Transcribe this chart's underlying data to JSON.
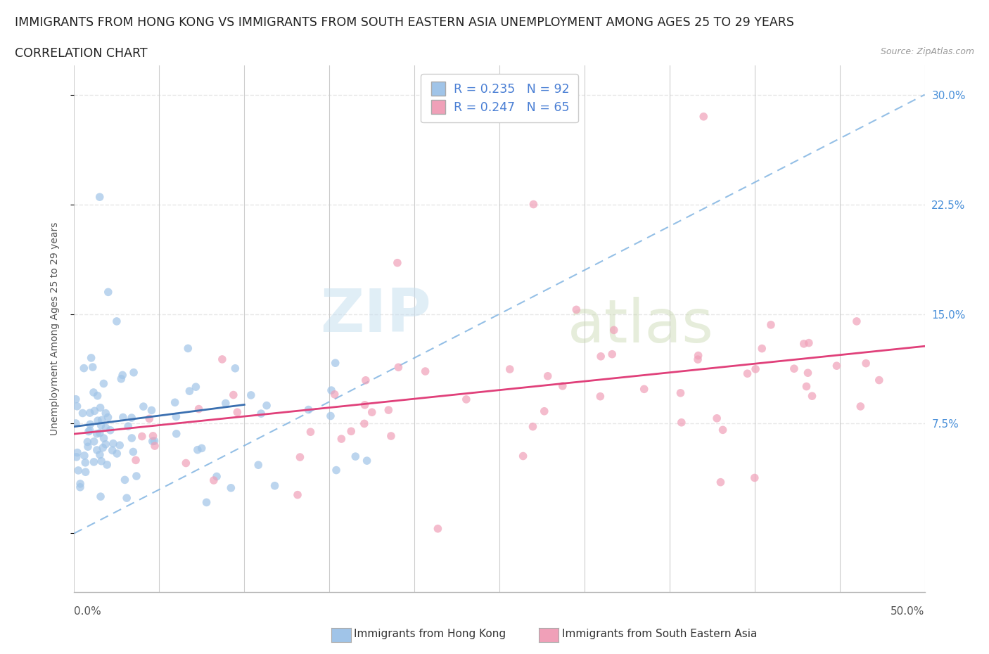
{
  "title_line1": "IMMIGRANTS FROM HONG KONG VS IMMIGRANTS FROM SOUTH EASTERN ASIA UNEMPLOYMENT AMONG AGES 25 TO 29 YEARS",
  "title_line2": "CORRELATION CHART",
  "source": "Source: ZipAtlas.com",
  "ylabel": "Unemployment Among Ages 25 to 29 years",
  "legend_hk_label": "Immigrants from Hong Kong",
  "legend_sea_label": "Immigrants from South Eastern Asia",
  "hk_R": 0.235,
  "hk_N": 92,
  "sea_R": 0.247,
  "sea_N": 65,
  "hk_dot_color": "#a0c4e8",
  "hk_line_color": "#3a6fb0",
  "hk_dash_color": "#7ab0e0",
  "sea_dot_color": "#f0a0b8",
  "sea_line_color": "#e0407a",
  "sea_dash_color": "#f0a0b8",
  "background_color": "#ffffff",
  "grid_color": "#e0e0e0",
  "yticks": [
    0.0,
    0.075,
    0.15,
    0.225,
    0.3
  ],
  "ytick_labels": [
    "",
    "7.5%",
    "15.0%",
    "22.5%",
    "30.0%"
  ],
  "xlim": [
    0.0,
    0.5
  ],
  "ylim": [
    -0.04,
    0.32
  ],
  "watermark_ZIP": "ZIP",
  "watermark_atlas": "atlas",
  "title_fontsize": 12.5,
  "axis_label_fontsize": 10
}
